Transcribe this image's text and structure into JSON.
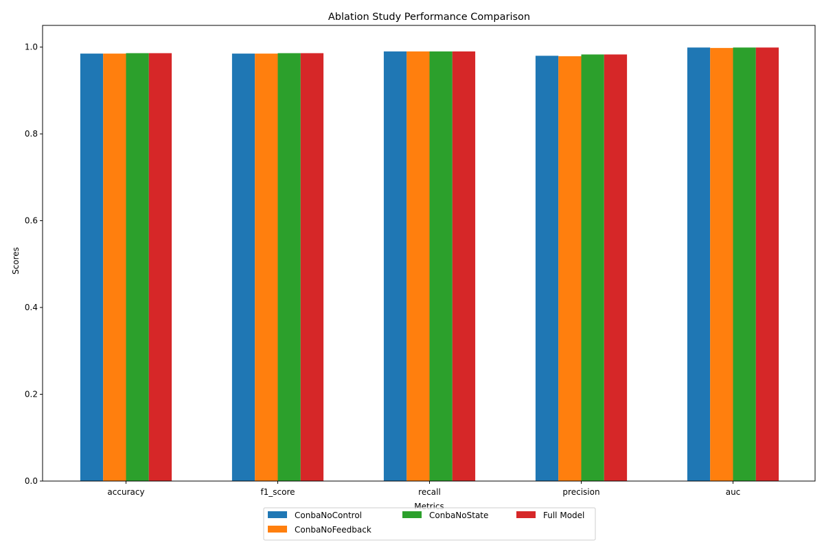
{
  "chart_data": {
    "type": "bar",
    "title": "Ablation Study Performance Comparison",
    "xlabel": "Metrics",
    "ylabel": "Scores",
    "categories": [
      "accuracy",
      "f1_score",
      "recall",
      "precision",
      "auc"
    ],
    "series": [
      {
        "name": "ConbaNoControl",
        "color": "#1f77b4",
        "values": [
          0.985,
          0.985,
          0.99,
          0.98,
          0.999
        ]
      },
      {
        "name": "ConbaNoFeedback",
        "color": "#ff7f0e",
        "values": [
          0.985,
          0.985,
          0.99,
          0.979,
          0.998
        ]
      },
      {
        "name": "ConbaNoState",
        "color": "#2ca02c",
        "values": [
          0.986,
          0.986,
          0.99,
          0.983,
          0.999
        ]
      },
      {
        "name": "Full Model",
        "color": "#d62728",
        "values": [
          0.986,
          0.986,
          0.99,
          0.983,
          0.999
        ]
      }
    ],
    "ylim": [
      0,
      1.05
    ],
    "yticks": [
      "0.0",
      "0.2",
      "0.4",
      "0.6",
      "0.8",
      "1.0"
    ],
    "grid": false,
    "legend_position": "bottom-center"
  }
}
